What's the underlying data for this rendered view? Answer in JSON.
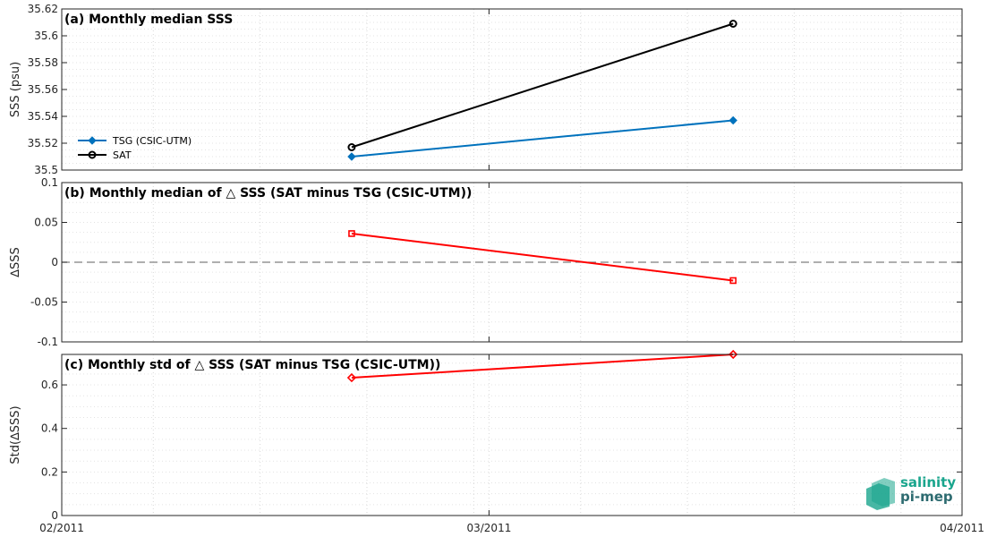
{
  "chart_data": [
    {
      "type": "line",
      "title": "(a) Monthly median SSS",
      "ylabel": "SSS (psu)",
      "xlim": [
        "02/2011",
        "04/2011"
      ],
      "x_ticks": [
        "02/2011",
        "03/2011",
        "04/2011"
      ],
      "ylim": [
        35.5,
        35.62
      ],
      "y_ticks": [
        "35.5",
        "35.52",
        "35.54",
        "35.56",
        "35.58",
        "35.6",
        "35.62"
      ],
      "grid": true,
      "legend": "left",
      "series": [
        {
          "name": "TSG (CSIC-UTM)",
          "color": "#0072BD",
          "marker": "diamond-filled",
          "x": [
            "2011-02-20",
            "2011-03-17"
          ],
          "values": [
            35.51,
            35.537
          ]
        },
        {
          "name": "SAT",
          "color": "#000000",
          "marker": "circle-open",
          "x": [
            "2011-02-20",
            "2011-03-17"
          ],
          "values": [
            35.517,
            35.609
          ]
        }
      ]
    },
    {
      "type": "line",
      "title": "(b) Monthly median of △ SSS (SAT minus TSG (CSIC-UTM))",
      "ylabel": "∆SSS",
      "xlim": [
        "02/2011",
        "04/2011"
      ],
      "ylim": [
        -0.1,
        0.1
      ],
      "y_ticks": [
        "-0.1",
        "-0.05",
        "0",
        "0.05",
        "0.1"
      ],
      "grid": true,
      "reference_line": 0,
      "series": [
        {
          "color": "#FF0000",
          "marker": "square-open",
          "x": [
            "2011-02-20",
            "2011-03-17"
          ],
          "values": [
            0.036,
            -0.023
          ]
        }
      ]
    },
    {
      "type": "line",
      "title": "(c) Monthly std of △ SSS (SAT minus TSG (CSIC-UTM))",
      "ylabel": "Std(∆SSS)",
      "xlim": [
        "02/2011",
        "04/2011"
      ],
      "ylim": [
        0,
        0.74
      ],
      "y_ticks": [
        "0",
        "0.2",
        "0.4",
        "0.6"
      ],
      "grid": true,
      "series": [
        {
          "color": "#FF0000",
          "marker": "diamond-open",
          "x": [
            "2011-02-20",
            "2011-03-17"
          ],
          "values": [
            0.633,
            0.74
          ]
        }
      ]
    }
  ],
  "logo": {
    "line1": "salinity",
    "line2": "pi-mep"
  },
  "colors": {
    "tsg": "#0072BD",
    "sat": "#000000",
    "delta": "#FF0000",
    "zero_line": "#7F7F7F",
    "logo": "#1aa58d"
  }
}
